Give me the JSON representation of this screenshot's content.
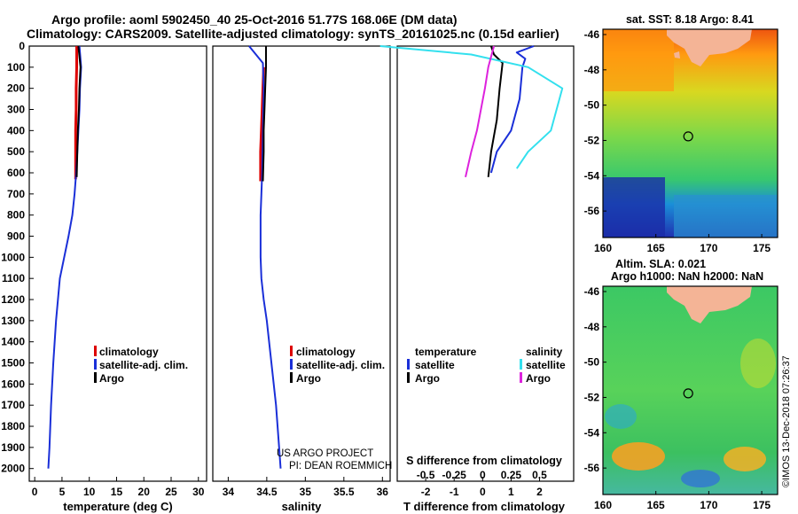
{
  "header": {
    "title_line1": "Argo profile: aoml 5902450_40 25-Oct-2016 51.77S 168.06E (DM data)",
    "title_line2": "Climatology: CARS2009. Satellite-adjusted climatology: synTS_20161025.nc (0.15d earlier)"
  },
  "colors": {
    "climatology": "#dd0000",
    "satellite": "#1a2fd8",
    "argo": "#000000",
    "sal_satellite": "#33e0ee",
    "sal_argo": "#dd22dd"
  },
  "legend_common": {
    "climatology": "climatology",
    "satellite": "satellite-adj. clim.",
    "argo": "Argo"
  },
  "legend_diff": {
    "temperature_header": "temperature",
    "salinity_header": "salinity",
    "t_satellite": "satellite",
    "t_argo": "Argo",
    "s_satellite": "satellite",
    "s_argo": "Argo"
  },
  "credits": {
    "line1": "US ARGO PROJECT",
    "line2": "PI: DEAN ROEMMICH"
  },
  "stamp": "©IMOS 13-Dec-2018 07:26:37",
  "maps": {
    "sst_title": "sat. SST: 8.18 Argo: 8.41",
    "sla_title1": "Altim. SLA: 0.021",
    "sla_title2": "Argo h1000: NaN h2000: NaN",
    "lat_ticks": [
      "-46",
      "-48",
      "-50",
      "-52",
      "-54",
      "-56"
    ],
    "lat_values": [
      -46,
      -48,
      -50,
      -52,
      -54,
      -56
    ],
    "lon_ticks": [
      "160",
      "165",
      "170",
      "175"
    ],
    "lon_values": [
      160,
      165,
      170,
      175
    ],
    "lon_range": [
      160,
      176.5
    ],
    "lat_range": [
      -57.5,
      -45.7
    ],
    "argo_position": [
      168.06,
      -51.77
    ]
  },
  "chart_data": [
    {
      "type": "line",
      "title": "",
      "xlabel": "temperature (deg C)",
      "ylabel": "",
      "xlim": [
        -1,
        31.5
      ],
      "ylim": [
        2060,
        0
      ],
      "xticks": [
        "0",
        "5",
        "10",
        "15",
        "20",
        "25",
        "30"
      ],
      "xtick_values": [
        0,
        5,
        10,
        15,
        20,
        25,
        30
      ],
      "yticks": [
        "0",
        "100",
        "200",
        "300",
        "400",
        "500",
        "600",
        "700",
        "800",
        "900",
        "1000",
        "1100",
        "1200",
        "1300",
        "1400",
        "1500",
        "1600",
        "1700",
        "1800",
        "1900",
        "2000"
      ],
      "ytick_values": [
        0,
        100,
        200,
        300,
        400,
        500,
        600,
        700,
        800,
        900,
        1000,
        1100,
        1200,
        1300,
        1400,
        1500,
        1600,
        1700,
        1800,
        1900,
        2000
      ],
      "series": [
        {
          "name": "climatology",
          "key": "climatology",
          "x": [
            7.7,
            7.7,
            7.6,
            7.6,
            7.5,
            7.5
          ],
          "y": [
            0,
            100,
            200,
            300,
            400,
            630
          ]
        },
        {
          "name": "satellite-adj. clim.",
          "key": "satellite",
          "x": [
            8.2,
            8.5,
            8.3,
            8.2,
            8.0,
            7.8,
            7.6,
            7.3,
            6.9,
            6.2,
            5.4,
            4.6,
            3.9,
            3.4,
            3.0,
            2.7,
            2.5
          ],
          "y": [
            0,
            100,
            200,
            300,
            400,
            500,
            600,
            700,
            800,
            900,
            1000,
            1100,
            1300,
            1500,
            1700,
            1900,
            2000
          ]
        },
        {
          "name": "Argo",
          "key": "argo",
          "x": [
            8.0,
            8.4,
            8.2,
            8.1,
            7.9,
            7.8,
            7.7
          ],
          "y": [
            0,
            100,
            200,
            300,
            400,
            500,
            620
          ]
        }
      ]
    },
    {
      "type": "line",
      "title": "",
      "xlabel": "salinity",
      "ylabel": "",
      "xlim": [
        33.8,
        36.1
      ],
      "ylim": [
        2060,
        0
      ],
      "xticks": [
        "34",
        "34.5",
        "35",
        "35.5",
        "36"
      ],
      "xtick_values": [
        34,
        34.5,
        35,
        35.5,
        36
      ],
      "series": [
        {
          "name": "climatology",
          "key": "climatology",
          "x": [
            34.46,
            34.45,
            34.44,
            34.43,
            34.42,
            34.42
          ],
          "y": [
            100,
            200,
            300,
            400,
            500,
            640
          ]
        },
        {
          "name": "satellite-adj. clim.",
          "key": "satellite",
          "x": [
            34.27,
            34.45,
            34.46,
            34.45,
            34.44,
            34.43,
            34.42,
            34.42,
            34.42,
            34.43,
            34.46,
            34.5,
            34.56,
            34.62,
            34.66,
            34.68
          ],
          "y": [
            0,
            80,
            200,
            400,
            600,
            700,
            800,
            900,
            1000,
            1100,
            1200,
            1300,
            1500,
            1700,
            1900,
            2000
          ]
        },
        {
          "name": "Argo",
          "key": "argo",
          "x": [
            34.49,
            34.49,
            34.48,
            34.47,
            34.46,
            34.46,
            34.45
          ],
          "y": [
            0,
            100,
            200,
            300,
            400,
            500,
            640
          ]
        }
      ]
    },
    {
      "type": "line",
      "title": "",
      "xlabel": "T difference from climatology",
      "ylabel": "",
      "xlim": [
        -3,
        3.2
      ],
      "ylim": [
        2060,
        0
      ],
      "xticks": [
        "-2",
        "-1",
        "0",
        "1",
        "2"
      ],
      "xtick_values": [
        -2,
        -1,
        0,
        1,
        2
      ],
      "secondary_axis_label": "S difference from climatology",
      "secondary_xticks": [
        "-0.5",
        "-0.25",
        "0",
        "0.25",
        "0.5"
      ],
      "secondary_xtick_values": [
        -0.5,
        -0.25,
        0,
        0.25,
        0.5
      ],
      "series": [
        {
          "name": "temperature satellite",
          "key": "satellite",
          "x": [
            1.8,
            1.2,
            1.5,
            1.4,
            1.3,
            1.0,
            0.5,
            0.3
          ],
          "y": [
            0,
            30,
            60,
            100,
            250,
            400,
            500,
            600
          ]
        },
        {
          "name": "temperature Argo",
          "key": "argo",
          "x": [
            0.3,
            0.4,
            0.7,
            0.6,
            0.5,
            0.3,
            0.2
          ],
          "y": [
            0,
            40,
            80,
            200,
            350,
            500,
            620
          ]
        },
        {
          "name": "salinity satellite",
          "key": "sal_satellite",
          "x": [
            -0.9,
            -0.1,
            0.4,
            0.7,
            0.6,
            0.4,
            0.3
          ],
          "y": [
            0,
            40,
            100,
            200,
            400,
            500,
            580
          ]
        },
        {
          "name": "salinity Argo",
          "key": "sal_argo",
          "x": [
            0.1,
            0.05,
            0.02,
            -0.05,
            -0.1,
            -0.15
          ],
          "y": [
            0,
            100,
            200,
            400,
            500,
            620
          ]
        }
      ]
    }
  ]
}
